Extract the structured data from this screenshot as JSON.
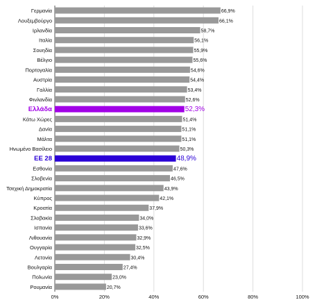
{
  "chart_data": {
    "type": "bar",
    "orientation": "horizontal",
    "categories": [
      "Γερμανία",
      "Λουξεμβούργο",
      "Ιρλανδία",
      "Ιταλία",
      "Σουηδία",
      "Βέλγιο",
      "Πορτογαλία",
      "Αυστρία",
      "Γαλλία",
      "Φινλανδία",
      "Ελλάδα",
      "Κάτω Χώρες",
      "Δανία",
      "Μάλτα",
      "Ηνωμένο Βασίλειο",
      "ΕΕ 28",
      "Εσθονία",
      "Σλοβενία",
      "Τσεχική Δημοκρατία",
      "Κύπρος",
      "Κροατία",
      "Σλοβακία",
      "Ισπανία",
      "Λιθουανία",
      "Ουγγαρία",
      "Λετονία",
      "Βουλγαρία",
      "Πολωνία",
      "Ρουμανία"
    ],
    "values": [
      66.9,
      66.1,
      58.7,
      56.1,
      55.9,
      55.6,
      54.6,
      54.4,
      53.4,
      52.6,
      52.3,
      51.4,
      51.1,
      51.1,
      50.3,
      48.9,
      47.6,
      46.5,
      43.9,
      42.1,
      37.9,
      34.0,
      33.6,
      32.9,
      32.5,
      30.4,
      27.4,
      23.0,
      20.7
    ],
    "value_labels": [
      "66,9%",
      "66,1%",
      "58,7%",
      "56,1%",
      "55,9%",
      "55,6%",
      "54,6%",
      "54,4%",
      "53,4%",
      "52,6%",
      "52,3%",
      "51,4%",
      "51,1%",
      "51,1%",
      "50,3%",
      "48,9%",
      "47,6%",
      "46,5%",
      "43,9%",
      "42,1%",
      "37,9%",
      "34,0%",
      "33,6%",
      "32,9%",
      "32,5%",
      "30,4%",
      "27,4%",
      "23,0%",
      "20,7%"
    ],
    "highlights": {
      "Ελλάδα": "#a100e6",
      "ΕΕ 28": "#2a00d6"
    },
    "xlim": [
      0,
      100
    ],
    "xticks": [
      "0%",
      "20%",
      "40%",
      "60%",
      "80%",
      "100%"
    ],
    "grid": true,
    "colors": {
      "bar": "#999999",
      "grid": "#dddddd",
      "axis": "#555555"
    }
  }
}
